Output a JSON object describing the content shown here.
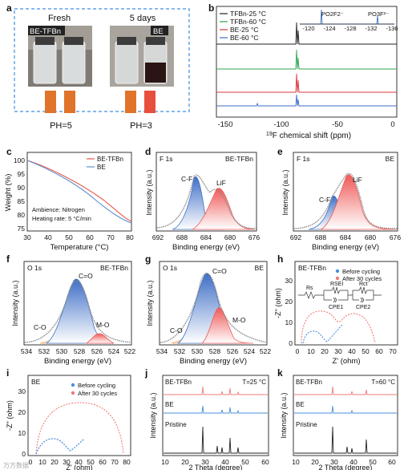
{
  "panels": {
    "a": {
      "letter": "a",
      "fresh_label": "Fresh",
      "days_label": "5 days",
      "vial_labels": [
        "BE-TFBn",
        "BE"
      ],
      "ph_labels": [
        "PH=5",
        "PH=3"
      ],
      "strip_colors": [
        "#e0742a",
        "#e0742a",
        "#e0742a",
        "#e8503e"
      ]
    },
    "b": {
      "letter": "b",
      "legend": [
        "TFBn-25 °C",
        "TFBn-60 °C",
        "BE-25 °C",
        "BE-60 °C"
      ],
      "colors": [
        "#222222",
        "#2fa44f",
        "#d9363e",
        "#3b6fc4"
      ],
      "xlabel": "19F chemical shift (ppm)",
      "xlabel_sup": "19",
      "xlabel_rest": "F chemical shift (ppm)",
      "xticks": [
        "-150",
        "-100",
        "-50",
        "0"
      ],
      "inset_ticks": [
        "-120",
        "-124",
        "-128",
        "-132",
        "-136"
      ],
      "inset_labels": [
        "PO2F2⁻",
        "PO3F²⁻"
      ]
    },
    "c": {
      "letter": "c",
      "legend": [
        "BE-TFBn",
        "BE"
      ],
      "colors": [
        "#e8574e",
        "#5b8fd0"
      ],
      "xlabel": "Temperature (°C)",
      "ylabel": "Weight (%)",
      "xticks": [
        "30",
        "40",
        "50",
        "60",
        "70",
        "80"
      ],
      "yticks": [
        "100",
        "95",
        "90",
        "85",
        "80",
        "75"
      ],
      "notes": [
        "Ambience: Nitrogen",
        "Heating rate: 5 °C/min"
      ]
    },
    "d": {
      "letter": "d",
      "title": "F 1s",
      "sample": "BE-TFBn",
      "peaks": [
        "C-F",
        "LiF"
      ],
      "xlabel": "Binding energy (eV)",
      "ylabel": "Intensity (a.u.)",
      "xticks": [
        "692",
        "688",
        "684",
        "680",
        "676"
      ]
    },
    "e": {
      "letter": "e",
      "title": "F 1s",
      "sample": "BE",
      "peaks": [
        "C-F",
        "LiF"
      ],
      "xlabel": "Binding energy (eV)",
      "ylabel": "Intensity (a.u.)",
      "xticks": [
        "692",
        "688",
        "684",
        "680",
        "676"
      ]
    },
    "f": {
      "letter": "f",
      "title": "O 1s",
      "sample": "BE-TFBn",
      "peaks": [
        "C=O",
        "C-O",
        "M-O"
      ],
      "xlabel": "Binding energy (eV)",
      "ylabel": "Intensity (a.u.)",
      "xticks": [
        "534",
        "532",
        "530",
        "528",
        "526",
        "524",
        "522"
      ]
    },
    "g": {
      "letter": "g",
      "title": "O 1s",
      "sample": "BE",
      "peaks": [
        "C=O",
        "C-O",
        "M-O"
      ],
      "xlabel": "Binding energy (eV)",
      "ylabel": "Intensity (a.u.)",
      "xticks": [
        "534",
        "532",
        "530",
        "528",
        "526",
        "524",
        "522"
      ]
    },
    "h": {
      "letter": "h",
      "sample": "BE-TFBn",
      "legend": [
        "Before cycling",
        "After 30 cycles"
      ],
      "colors": [
        "#4a90d9",
        "#ef7b78"
      ],
      "xlabel": "Z' (ohm)",
      "ylabel": "-Z\" (ohm)",
      "xticks": [
        "0",
        "10",
        "20",
        "30",
        "40",
        "50",
        "60",
        "70"
      ],
      "yticks": [
        "0",
        "10",
        "20",
        "30"
      ],
      "circuit": [
        "Rs",
        "RSEI",
        "Rct",
        "CPE1",
        "CPE2"
      ]
    },
    "i": {
      "letter": "i",
      "sample": "BE",
      "legend": [
        "Before cycling",
        "After 30 cycles"
      ],
      "colors": [
        "#4a90d9",
        "#ef7b78"
      ],
      "xlabel": "Z' (ohm)",
      "ylabel": "-Z\" (ohm)",
      "xticks": [
        "0",
        "10",
        "20",
        "30",
        "40",
        "50",
        "60",
        "70",
        "80"
      ],
      "yticks": [
        "0",
        "10",
        "20",
        "30"
      ]
    },
    "j": {
      "letter": "j",
      "sample": "BE-TFBn",
      "condition": "T=25 °C",
      "traces": [
        "BE-TFBn",
        "BE",
        "Pristine"
      ],
      "xlabel": "2 Theta (degree)",
      "ylabel": "Intensity (a.u.)",
      "xticks": [
        "10",
        "20",
        "30",
        "40",
        "50",
        "60"
      ]
    },
    "k": {
      "letter": "k",
      "sample": "BE-TFBn",
      "condition": "T=60 °C",
      "traces": [
        "BE-TFBn",
        "BE",
        "Pristine"
      ],
      "xlabel": "2 Theta (degree)",
      "ylabel": "Intensity (a.u.)",
      "xticks": [
        "10",
        "20",
        "30",
        "40",
        "50",
        "60"
      ]
    }
  },
  "watermark": "万方数据"
}
